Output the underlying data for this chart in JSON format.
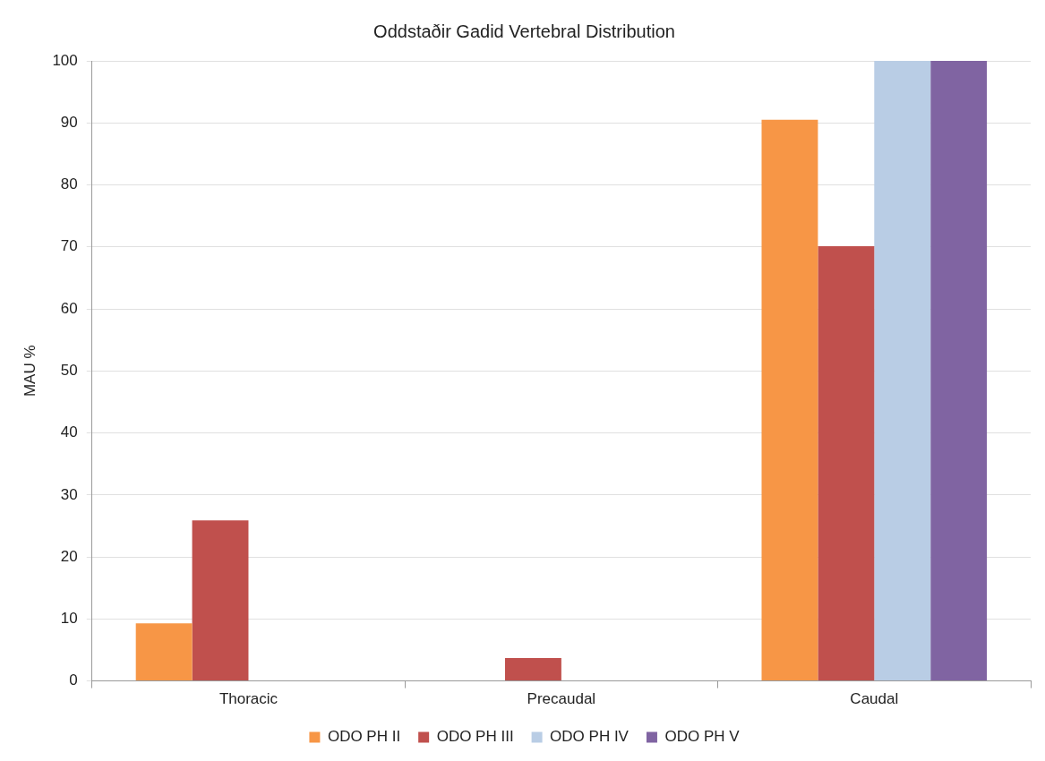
{
  "chart_data": {
    "type": "bar",
    "title": "Oddstaðir Gadid Vertebral Distribution",
    "ylabel": "MAU %",
    "categories": [
      "Thoracic",
      "Precaudal",
      "Caudal"
    ],
    "series": [
      {
        "name": "ODO PH II",
        "color": "#f79646",
        "values": [
          9.3,
          0,
          90.5
        ]
      },
      {
        "name": "ODO PH III",
        "color": "#c0504d",
        "values": [
          25.9,
          3.7,
          70.1
        ]
      },
      {
        "name": "ODO PH IV",
        "color": "#b9cde5",
        "values": [
          0,
          0,
          100
        ]
      },
      {
        "name": "ODO PH V",
        "color": "#8064a2",
        "values": [
          0,
          0,
          100
        ]
      }
    ],
    "ylim": [
      0,
      100
    ],
    "yticks": [
      0,
      10,
      20,
      30,
      40,
      50,
      60,
      70,
      80,
      90,
      100
    ],
    "grid": "y",
    "legend": "bottom"
  }
}
